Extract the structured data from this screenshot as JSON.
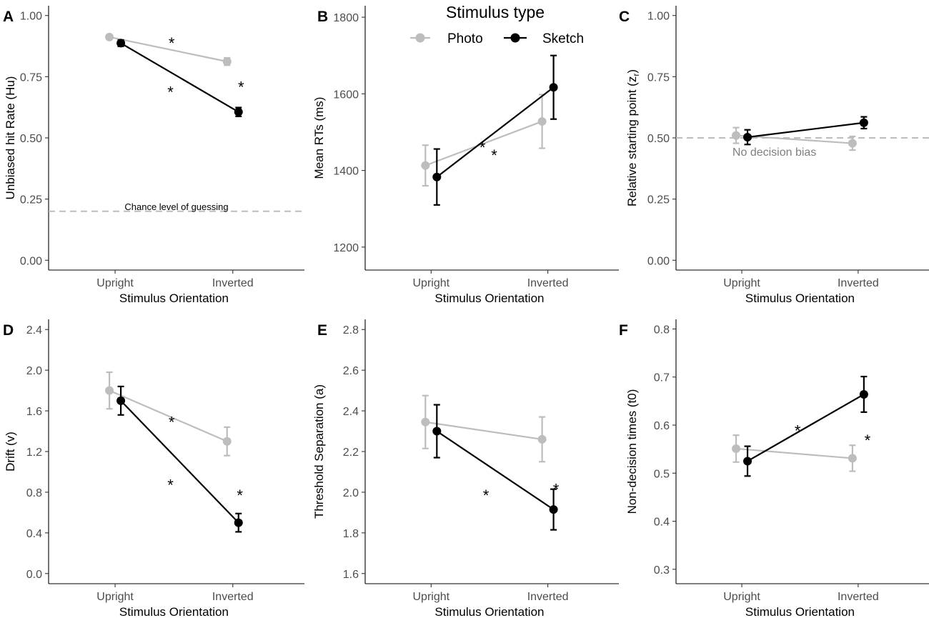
{
  "legend": {
    "title": "Stimulus type",
    "entries": [
      {
        "name": "Photo",
        "color": "#bdbdbd"
      },
      {
        "name": "Sketch",
        "color": "#000000"
      }
    ]
  },
  "chart_data": [
    {
      "id": "A",
      "type": "line",
      "letter": "A",
      "xlabel": "Stimulus Orientation",
      "ylabel": "Unbiased hit Rate (Hu)",
      "categories": [
        "Upright",
        "Inverted"
      ],
      "ylim": [
        -0.04,
        1.04
      ],
      "yticks": [
        0.0,
        0.25,
        0.5,
        0.75,
        1.0
      ],
      "ytick_labels": [
        "0.00",
        "0.25",
        "0.50",
        "0.75",
        "1.00"
      ],
      "series": [
        {
          "name": "Photo",
          "color": "#bdbdbd",
          "values": [
            0.912,
            0.812
          ],
          "err": [
            0.006,
            0.015
          ]
        },
        {
          "name": "Sketch",
          "color": "#000000",
          "values": [
            0.887,
            0.606
          ],
          "err": [
            0.013,
            0.018
          ]
        }
      ],
      "hline": {
        "y": 0.2,
        "label": "Chance level of guessing",
        "label_x": 0.5
      },
      "stars": [
        {
          "x": 0.48,
          "y": 0.9
        },
        {
          "x": 0.47,
          "y": 0.7
        },
        {
          "x": 1.07,
          "y": 0.72
        }
      ]
    },
    {
      "id": "B",
      "type": "line",
      "letter": "B",
      "xlabel": "Stimulus Orientation",
      "ylabel": "Mean RTs (ms)",
      "categories": [
        "Upright",
        "Inverted"
      ],
      "ylim": [
        1140,
        1830
      ],
      "yticks": [
        1200,
        1400,
        1600,
        1800
      ],
      "ytick_labels": [
        "1200",
        "1400",
        "1600",
        "1800"
      ],
      "series": [
        {
          "name": "Photo",
          "color": "#bdbdbd",
          "values": [
            1413,
            1528
          ],
          "err": [
            53,
            70
          ]
        },
        {
          "name": "Sketch",
          "color": "#000000",
          "values": [
            1383,
            1617
          ],
          "err": [
            73,
            83
          ]
        }
      ],
      "stars": [
        {
          "x": 0.44,
          "y": 1468
        },
        {
          "x": 0.54,
          "y": 1448
        }
      ]
    },
    {
      "id": "C",
      "type": "line",
      "letter": "C",
      "xlabel": "Stimulus Orientation",
      "ylabel": "Relative starting point (z",
      "ylabel_sub": "r",
      "ylabel_end": ")",
      "categories": [
        "Upright",
        "Inverted"
      ],
      "ylim": [
        -0.04,
        1.04
      ],
      "yticks": [
        0.0,
        0.25,
        0.5,
        0.75,
        1.0
      ],
      "ytick_labels": [
        "0.00",
        "0.25",
        "0.50",
        "0.75",
        "1.00"
      ],
      "series": [
        {
          "name": "Photo",
          "color": "#bdbdbd",
          "values": [
            0.51,
            0.478
          ],
          "err": [
            0.032,
            0.028
          ]
        },
        {
          "name": "Sketch",
          "color": "#000000",
          "values": [
            0.503,
            0.562
          ],
          "err": [
            0.03,
            0.024
          ]
        }
      ],
      "hline": {
        "y": 0.5,
        "label": "No decision bias",
        "label_x": 0.28
      },
      "stars": []
    },
    {
      "id": "D",
      "type": "line",
      "letter": "D",
      "xlabel": "Stimulus Orientation",
      "ylabel": "Drift (v)",
      "categories": [
        "Upright",
        "Inverted"
      ],
      "ylim": [
        -0.1,
        2.5
      ],
      "yticks": [
        0.0,
        0.4,
        0.8,
        1.2,
        1.6,
        2.0,
        2.4
      ],
      "ytick_labels": [
        "0.0",
        "0.4",
        "0.8",
        "1.2",
        "1.6",
        "2.0",
        "2.4"
      ],
      "series": [
        {
          "name": "Photo",
          "color": "#bdbdbd",
          "values": [
            1.8,
            1.3
          ],
          "err": [
            0.18,
            0.14
          ]
        },
        {
          "name": "Sketch",
          "color": "#000000",
          "values": [
            1.7,
            0.5
          ],
          "err": [
            0.14,
            0.09
          ]
        }
      ],
      "stars": [
        {
          "x": 0.48,
          "y": 1.52
        },
        {
          "x": 0.47,
          "y": 0.9
        },
        {
          "x": 1.06,
          "y": 0.8
        }
      ]
    },
    {
      "id": "E",
      "type": "line",
      "letter": "E",
      "xlabel": "Stimulus Orientation",
      "ylabel": "Threshold Separation (a)",
      "categories": [
        "Upright",
        "Inverted"
      ],
      "ylim": [
        1.55,
        2.85
      ],
      "yticks": [
        1.6,
        1.8,
        2.0,
        2.2,
        2.4,
        2.6,
        2.8
      ],
      "ytick_labels": [
        "1.6",
        "1.8",
        "2.0",
        "2.2",
        "2.4",
        "2.6",
        "2.8"
      ],
      "series": [
        {
          "name": "Photo",
          "color": "#bdbdbd",
          "values": [
            2.345,
            2.26
          ],
          "err": [
            0.13,
            0.11
          ]
        },
        {
          "name": "Sketch",
          "color": "#000000",
          "values": [
            2.3,
            1.915
          ],
          "err": [
            0.13,
            0.1
          ]
        }
      ],
      "stars": [
        {
          "x": 0.47,
          "y": 2.0
        },
        {
          "x": 1.07,
          "y": 2.03
        }
      ]
    },
    {
      "id": "F",
      "type": "line",
      "letter": "F",
      "xlabel": "Stimulus Orientation",
      "ylabel": "Non-decision times (t0)",
      "categories": [
        "Upright",
        "Inverted"
      ],
      "ylim": [
        0.27,
        0.82
      ],
      "yticks": [
        0.3,
        0.4,
        0.5,
        0.6,
        0.7,
        0.8
      ],
      "ytick_labels": [
        "0.3",
        "0.4",
        "0.5",
        "0.6",
        "0.7",
        "0.8"
      ],
      "series": [
        {
          "name": "Photo",
          "color": "#bdbdbd",
          "values": [
            0.551,
            0.531
          ],
          "err": [
            0.028,
            0.027
          ]
        },
        {
          "name": "Sketch",
          "color": "#000000",
          "values": [
            0.525,
            0.664
          ],
          "err": [
            0.031,
            0.037
          ]
        }
      ],
      "stars": [
        {
          "x": 0.48,
          "y": 0.595
        },
        {
          "x": 1.08,
          "y": 0.575
        }
      ]
    }
  ]
}
